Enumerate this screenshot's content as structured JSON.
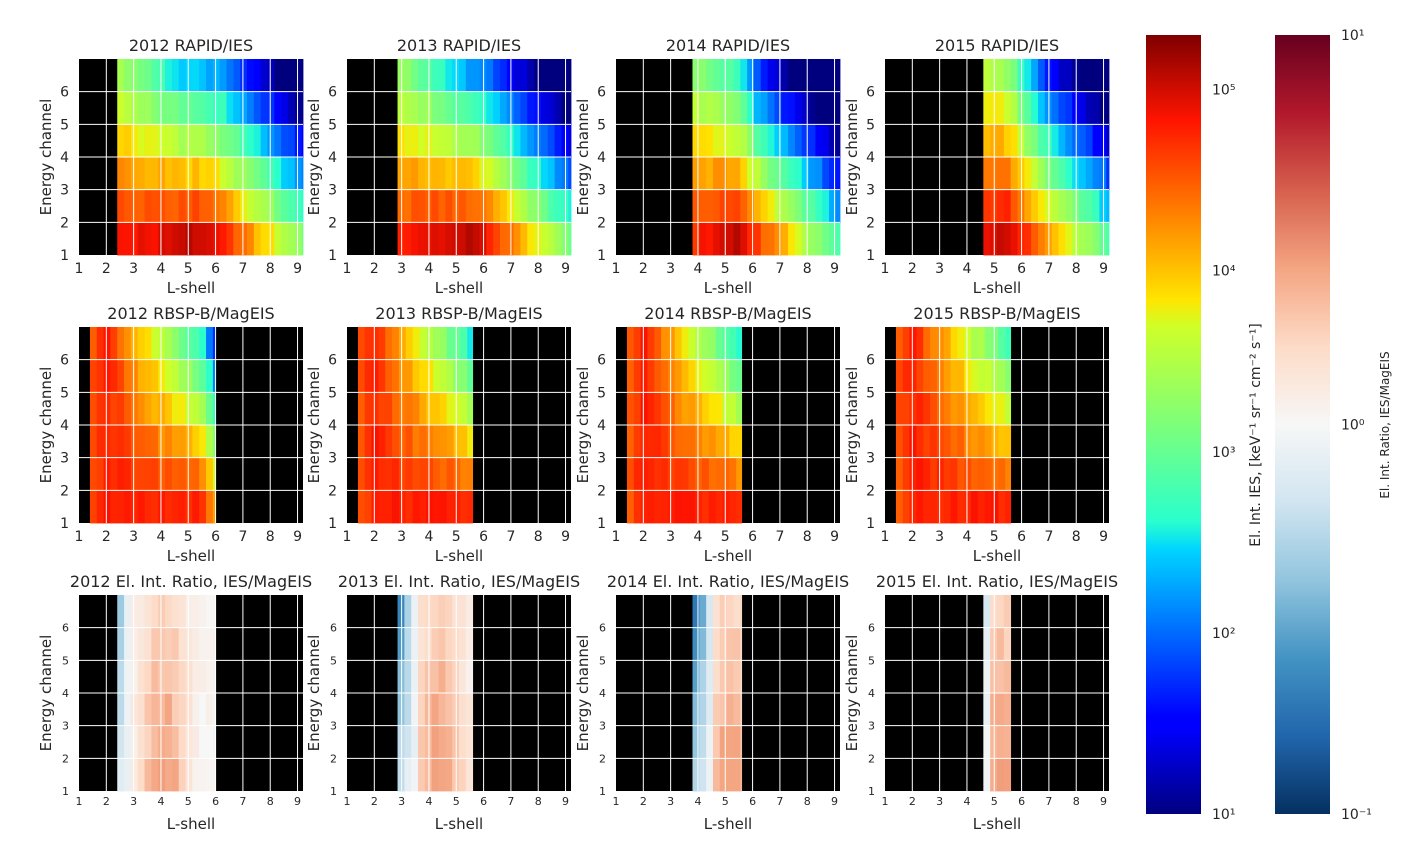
{
  "chart_data": {
    "type": "heatmap",
    "figure": "Electron intensity heatmaps: RAPID/IES vs RBSP-B/MagEIS and their ratio, per year",
    "xlabel": "L-shell",
    "ylabel": "Energy channel",
    "x_ticks": [
      "1",
      "2",
      "3",
      "4",
      "5",
      "6",
      "7",
      "8",
      "9"
    ],
    "y_ticks": [
      "1",
      "2",
      "3",
      "4",
      "5",
      "6"
    ],
    "xlim": [
      1,
      9.2
    ],
    "ylim": [
      1,
      7
    ],
    "years": [
      "2012",
      "2013",
      "2014",
      "2015"
    ],
    "row_titles": [
      "RAPID/IES",
      "RBSP-B/MagEIS",
      "El. Int. Ratio, IES/MagEIS"
    ],
    "panels": [
      {
        "title": "2012 RAPID/IES",
        "row": 0,
        "col": 0,
        "scale": "flux",
        "lmin": 2.4,
        "lmax": 9.2,
        "peak": 5.35,
        "edge": 6.05,
        "slope": 0.42,
        "cdrop": 0.39,
        "pc": 0.2
      },
      {
        "title": "2013 RAPID/IES",
        "row": 0,
        "col": 1,
        "scale": "flux",
        "lmin": 2.85,
        "lmax": 9.2,
        "peak": 5.35,
        "edge": 5.9,
        "slope": 0.44,
        "cdrop": 0.42,
        "pc": 0.28
      },
      {
        "title": "2014 RAPID/IES",
        "row": 0,
        "col": 2,
        "scale": "flux",
        "lmin": 3.8,
        "lmax": 9.2,
        "peak": 5.3,
        "edge": 5.55,
        "slope": 0.5,
        "cdrop": 0.44,
        "pc": 0.5
      },
      {
        "title": "2015 RAPID/IES",
        "row": 0,
        "col": 3,
        "scale": "flux",
        "lmin": 4.6,
        "lmax": 9.2,
        "peak": 5.3,
        "edge": 5.55,
        "slope": 0.46,
        "cdrop": 0.36,
        "pc": 0.5
      },
      {
        "title": "2012 RBSP-B/MagEIS",
        "row": 1,
        "col": 0,
        "scale": "flux",
        "lmin": 1.4,
        "lmax": 6.0,
        "peak": 5.2,
        "edge": 5.45,
        "slope": 0.05,
        "cdrop": 0.1,
        "pc": 0.12
      },
      {
        "title": "2013 RBSP-B/MagEIS",
        "row": 1,
        "col": 1,
        "scale": "flux",
        "lmin": 1.4,
        "lmax": 5.6,
        "peak": 5.2,
        "edge": 5.45,
        "slope": 0.03,
        "cdrop": 0.1,
        "pc": 0.1
      },
      {
        "title": "2014 RBSP-B/MagEIS",
        "row": 1,
        "col": 2,
        "scale": "flux",
        "lmin": 1.4,
        "lmax": 5.6,
        "peak": 5.2,
        "edge": 5.45,
        "slope": 0.05,
        "cdrop": 0.1,
        "pc": 0.12
      },
      {
        "title": "2015 RBSP-B/MagEIS",
        "row": 1,
        "col": 3,
        "scale": "flux",
        "lmin": 1.4,
        "lmax": 5.6,
        "peak": 5.2,
        "edge": 5.45,
        "slope": 0.03,
        "cdrop": 0.09,
        "pc": 0.1
      },
      {
        "title": "2012 El. Int. Ratio, IES/MagEIS",
        "row": 2,
        "col": 0,
        "scale": "ratio",
        "lmin": 2.4,
        "lmax": 6.0,
        "low": 2.85,
        "hot": 4.1
      },
      {
        "title": "2013 El. Int. Ratio, IES/MagEIS",
        "row": 2,
        "col": 1,
        "scale": "ratio",
        "lmin": 2.85,
        "lmax": 5.6,
        "low": 3.55,
        "hot": 4.4
      },
      {
        "title": "2014 El. Int. Ratio, IES/MagEIS",
        "row": 2,
        "col": 2,
        "scale": "ratio",
        "lmin": 3.8,
        "lmax": 5.6,
        "low": 4.6,
        "hot": 5.2
      },
      {
        "title": "2015 El. Int. Ratio, IES/MagEIS",
        "row": 2,
        "col": 3,
        "scale": "ratio",
        "lmin": 4.6,
        "lmax": 5.6,
        "low": 4.85,
        "hot": 5.2
      }
    ],
    "colorbars": [
      {
        "name": "flux",
        "label": "El. Int. IES, [keV⁻¹ sr⁻¹ cm⁻² s⁻¹]",
        "colormap": "jet",
        "scale": "log",
        "range": [
          10,
          200000
        ],
        "ticks": [
          "10¹",
          "10²",
          "10³",
          "10⁴",
          "10⁵"
        ],
        "tick_values": [
          1,
          2,
          3,
          4,
          5
        ]
      },
      {
        "name": "ratio",
        "label": "El. Int. Ratio, IES/MagEIS",
        "colormap": "RdBu_r",
        "scale": "log",
        "range": [
          0.1,
          10
        ],
        "ticks": [
          "10⁻¹",
          "10⁰",
          "10¹"
        ],
        "tick_values": [
          -1,
          0,
          1
        ]
      }
    ]
  }
}
